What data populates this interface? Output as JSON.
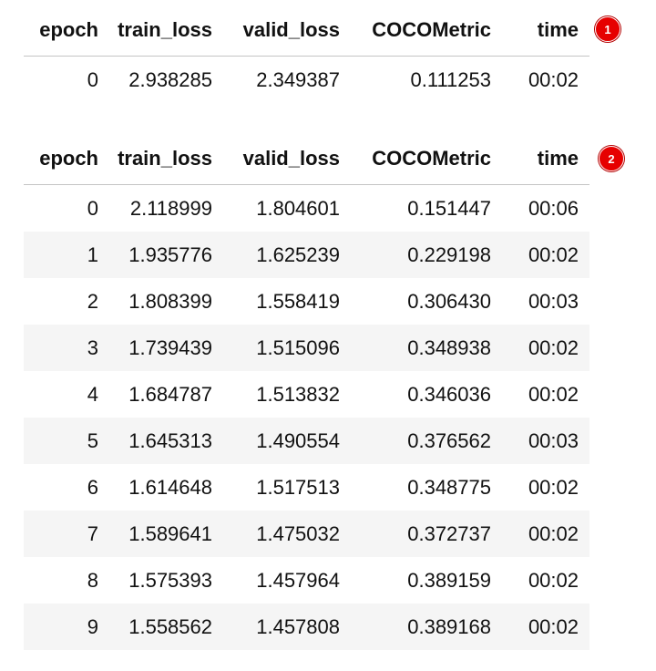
{
  "columns": [
    "epoch",
    "train_loss",
    "valid_loss",
    "COCOMetric",
    "time"
  ],
  "table1": {
    "badge": "1",
    "rows": [
      [
        "0",
        "2.938285",
        "2.349387",
        "0.111253",
        "00:02"
      ]
    ]
  },
  "table2": {
    "badge": "2",
    "rows": [
      [
        "0",
        "2.118999",
        "1.804601",
        "0.151447",
        "00:06"
      ],
      [
        "1",
        "1.935776",
        "1.625239",
        "0.229198",
        "00:02"
      ],
      [
        "2",
        "1.808399",
        "1.558419",
        "0.306430",
        "00:03"
      ],
      [
        "3",
        "1.739439",
        "1.515096",
        "0.348938",
        "00:02"
      ],
      [
        "4",
        "1.684787",
        "1.513832",
        "0.346036",
        "00:02"
      ],
      [
        "5",
        "1.645313",
        "1.490554",
        "0.376562",
        "00:03"
      ],
      [
        "6",
        "1.614648",
        "1.517513",
        "0.348775",
        "00:02"
      ],
      [
        "7",
        "1.589641",
        "1.475032",
        "0.372737",
        "00:02"
      ],
      [
        "8",
        "1.575393",
        "1.457964",
        "0.389159",
        "00:02"
      ],
      [
        "9",
        "1.558562",
        "1.457808",
        "0.389168",
        "00:02"
      ]
    ]
  },
  "colors": {
    "badge": "#e60000",
    "row_stripe": "#f5f5f5",
    "header_rule": "#c4c4c4"
  }
}
